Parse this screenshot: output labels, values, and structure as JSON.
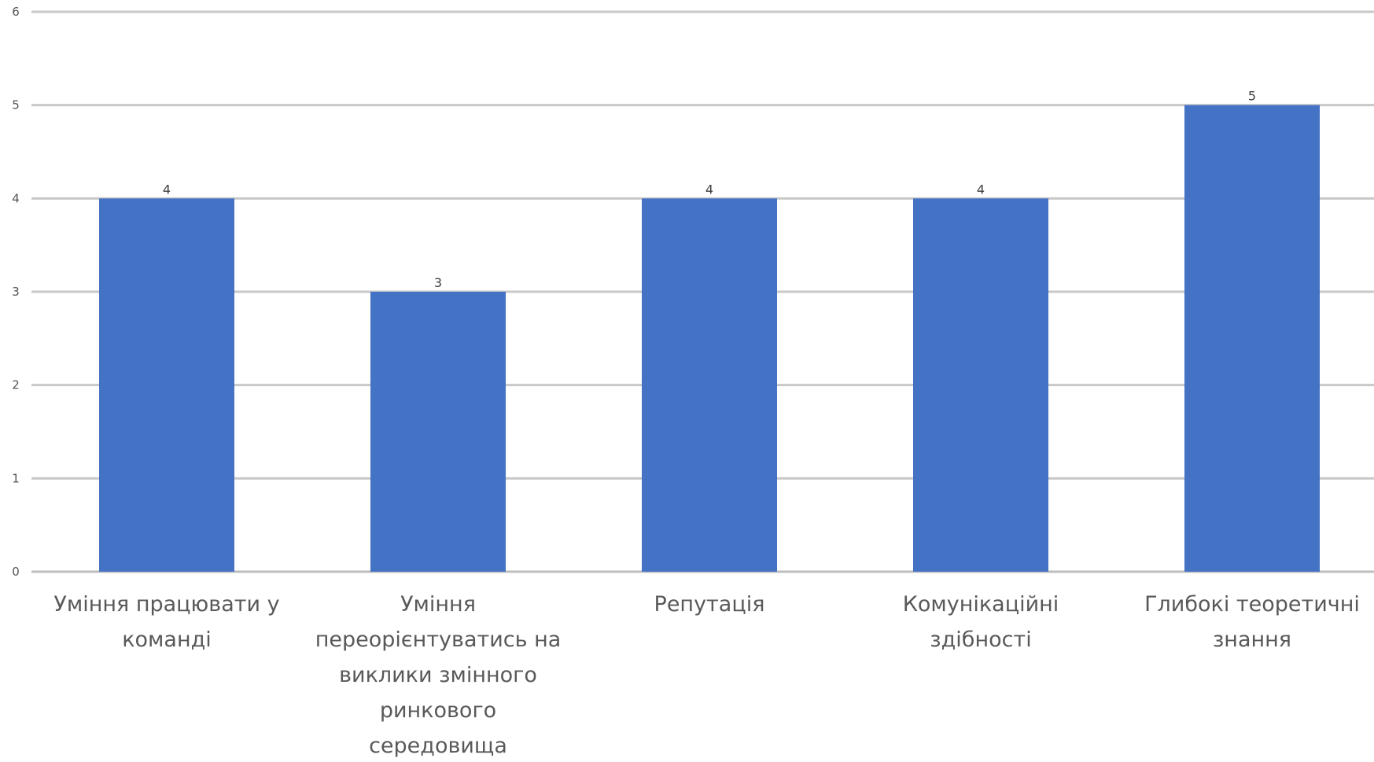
{
  "chart_data": {
    "type": "bar",
    "categories": [
      "Уміння працювати у команді",
      "Уміння переорієнтуватись на виклики змінного ринкового середовища",
      "Репутація",
      "Комунікаційні здібності",
      "Глибокі теоретичні знання"
    ],
    "category_label_lines": [
      [
        "Уміння працювати у",
        "команді"
      ],
      [
        "Уміння",
        "переорієнтуватись на",
        "виклики змінного",
        "ринкового",
        "середовища"
      ],
      [
        "Репутація"
      ],
      [
        "Комунікаційні",
        "здібності"
      ],
      [
        "Глибокі теоретичні",
        "знання"
      ]
    ],
    "values": [
      4,
      3,
      4,
      4,
      5
    ],
    "data_labels": [
      "4",
      "3",
      "4",
      "4",
      "5"
    ],
    "yticks": [
      0,
      1,
      2,
      3,
      4,
      5,
      6
    ],
    "ylim": [
      0,
      6
    ],
    "grid": true,
    "legend": "none",
    "title": "",
    "xlabel": "",
    "ylabel": "",
    "colors": {
      "bar": "#4472c4"
    }
  }
}
